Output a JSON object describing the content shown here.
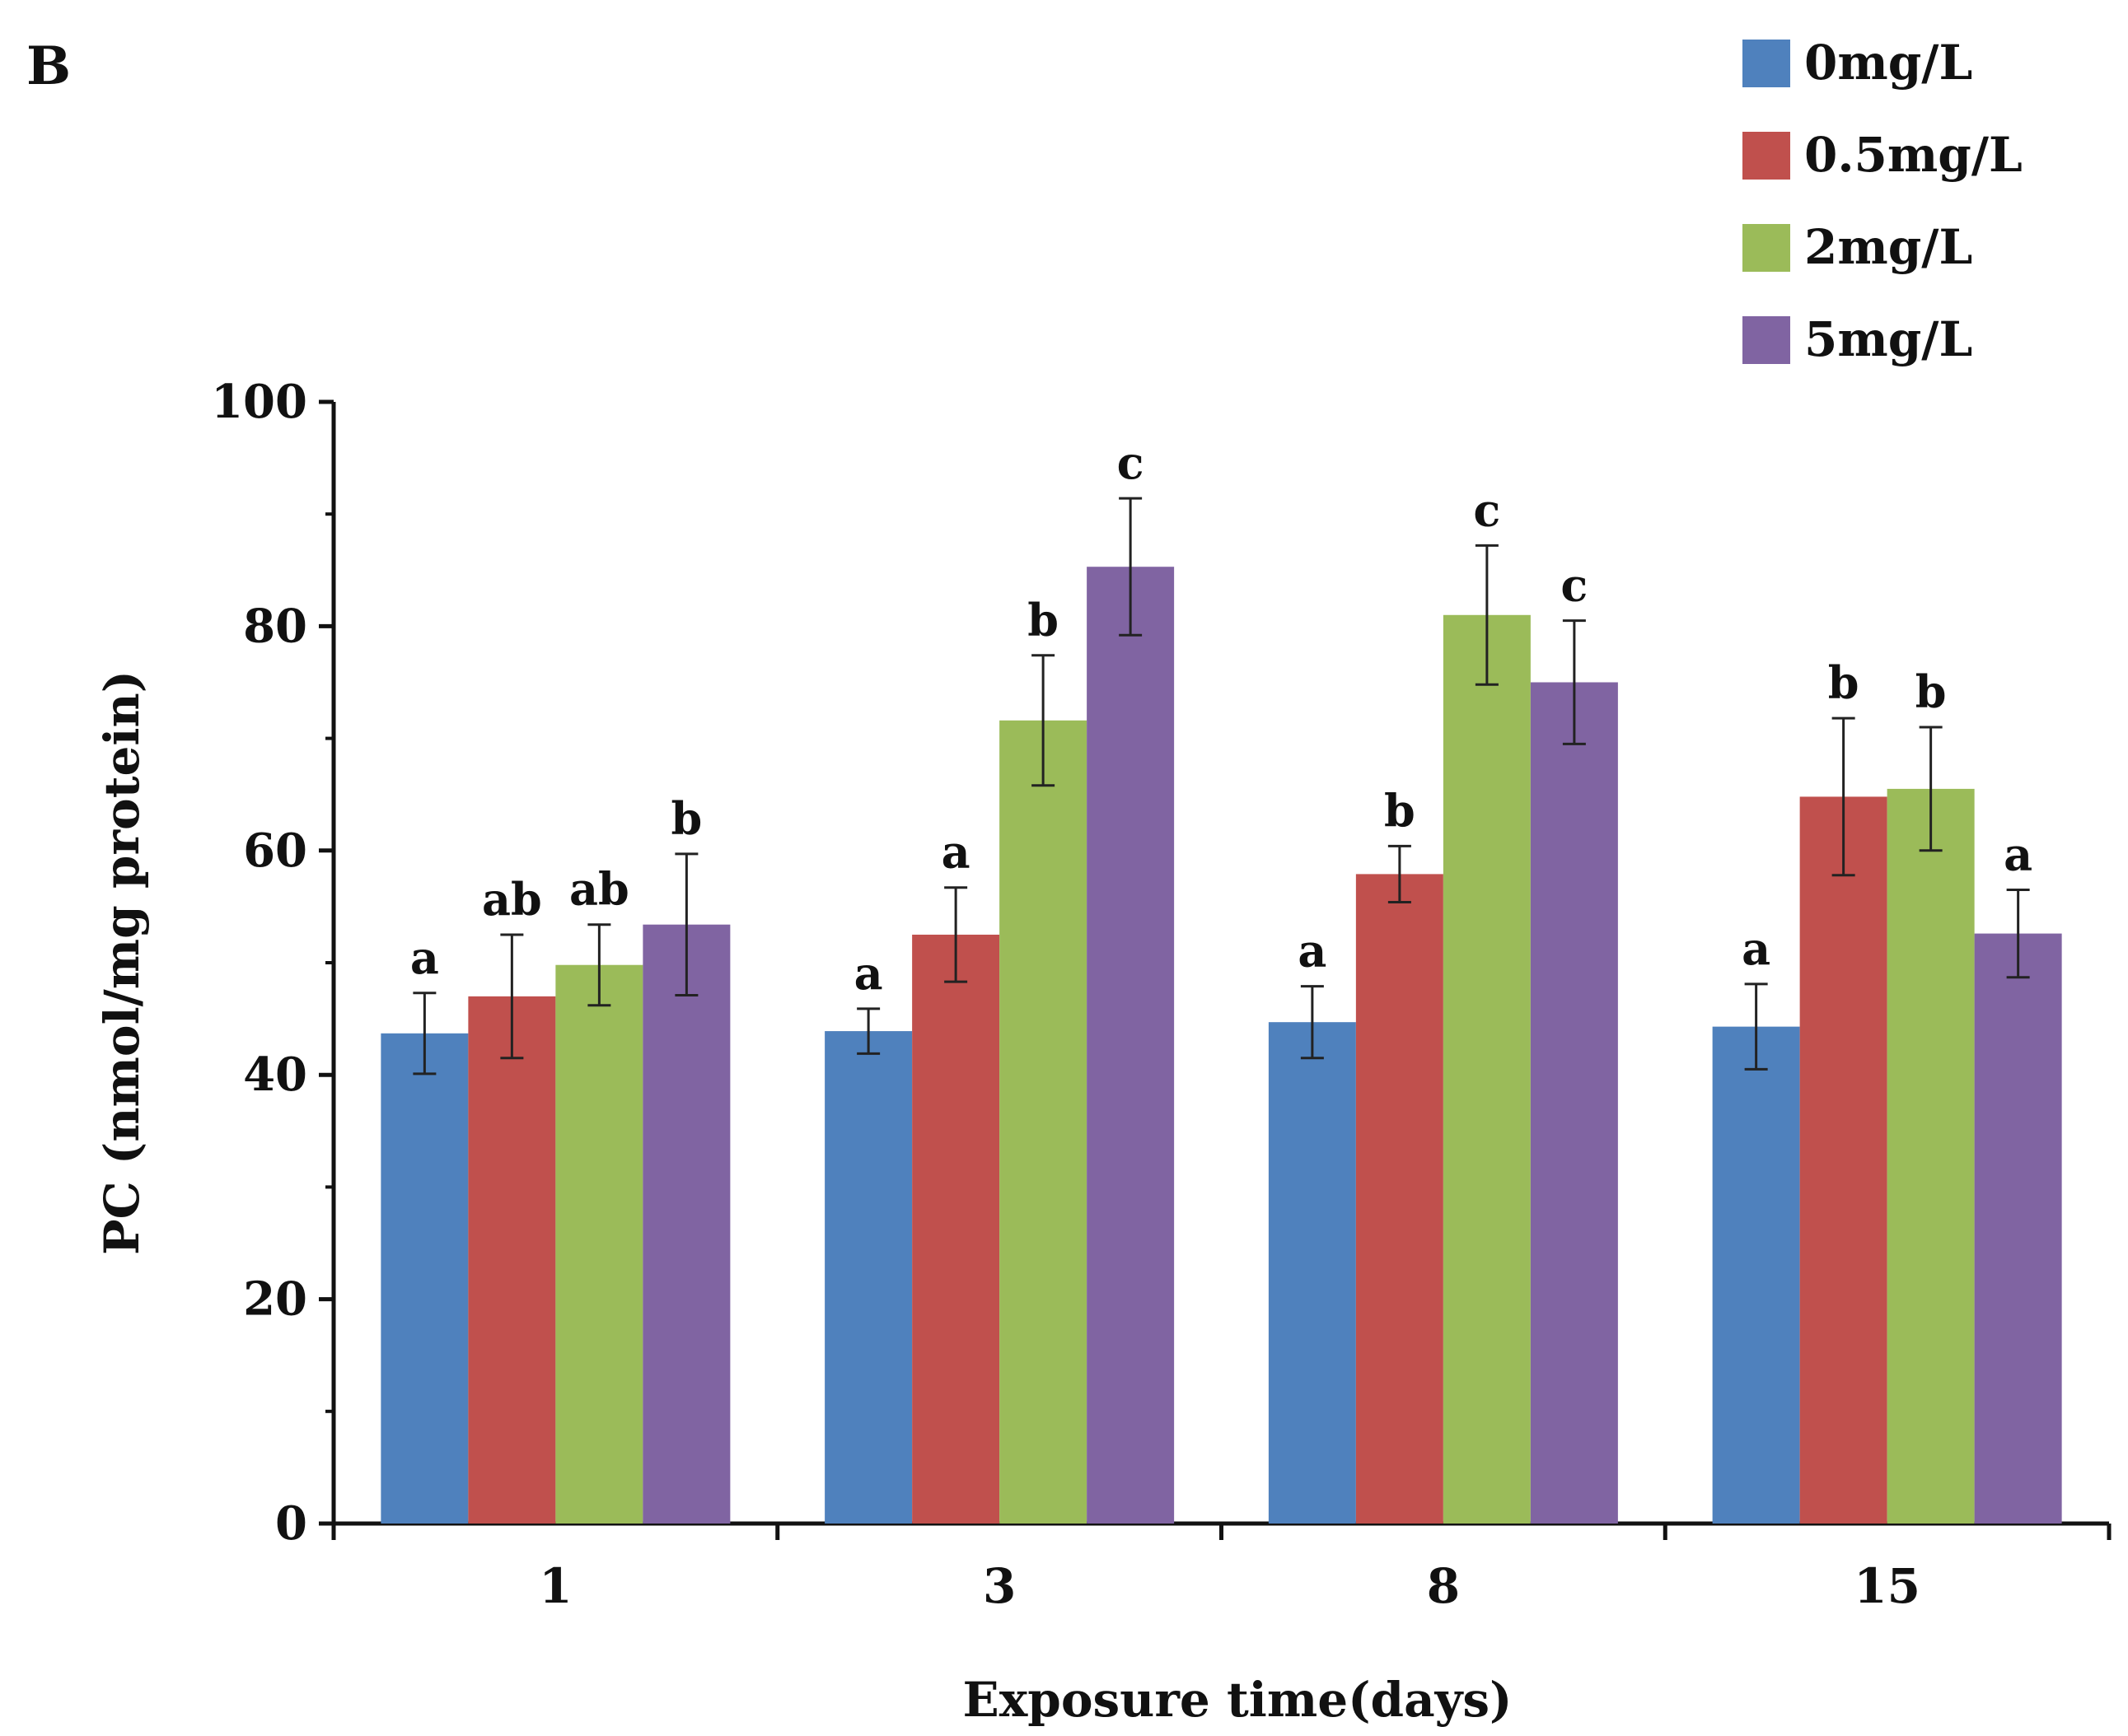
{
  "panel_label": "B",
  "chart_data": {
    "type": "bar",
    "title": "",
    "xlabel": "Exposure time(days)",
    "ylabel": "PC (nmol/mg protein)",
    "ylim": [
      0,
      100
    ],
    "yticks": [
      0,
      20,
      40,
      60,
      80,
      100
    ],
    "legend_position": "top-right",
    "categories": [
      "1",
      "3",
      "8",
      "15"
    ],
    "series": [
      {
        "name": "0mg/L",
        "color": "#4f81bd",
        "values": [
          43.7,
          43.9,
          44.7,
          44.3
        ],
        "errors": [
          3.6,
          2.0,
          3.2,
          3.8
        ],
        "letters": [
          "a",
          "a",
          "a",
          "a"
        ]
      },
      {
        "name": "0.5mg/L",
        "color": "#c0504d",
        "values": [
          47.0,
          52.5,
          57.9,
          64.8
        ],
        "errors": [
          5.5,
          4.2,
          2.5,
          7.0
        ],
        "letters": [
          "ab",
          "a",
          "b",
          "b"
        ]
      },
      {
        "name": "2mg/L",
        "color": "#9bbb59",
        "values": [
          49.8,
          71.6,
          81.0,
          65.5
        ],
        "errors": [
          3.6,
          5.8,
          6.2,
          5.5
        ],
        "letters": [
          "ab",
          "b",
          "c",
          "b"
        ]
      },
      {
        "name": "5mg/L",
        "color": "#8064a2",
        "values": [
          53.4,
          85.3,
          75.0,
          52.6
        ],
        "errors": [
          6.3,
          6.1,
          5.5,
          3.9
        ],
        "letters": [
          "b",
          "c",
          "c",
          "a"
        ]
      }
    ]
  }
}
